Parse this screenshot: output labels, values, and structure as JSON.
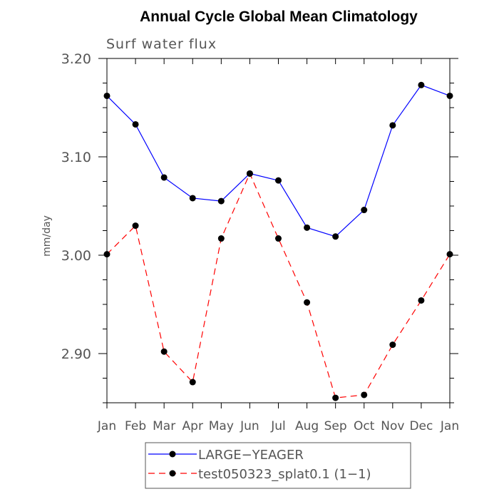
{
  "chart_data": {
    "type": "line",
    "title": "Annual Cycle Global Mean Climatology",
    "subtitle": "Surf water flux",
    "xlabel": "",
    "ylabel": "mm/day",
    "categories": [
      "Jan",
      "Feb",
      "Mar",
      "Apr",
      "May",
      "Jun",
      "Jul",
      "Aug",
      "Sep",
      "Oct",
      "Nov",
      "Dec",
      "Jan"
    ],
    "ylim": [
      2.85,
      3.2
    ],
    "yticks": [
      2.9,
      3.0,
      3.1,
      3.2
    ],
    "ytick_labels": [
      "2.90",
      "3.00",
      "3.10",
      "3.20"
    ],
    "yminor_step": 0.025,
    "legend_position": "bottom",
    "series": [
      {
        "name": "LARGE−YEAGER",
        "color": "#0000ff",
        "dash": "solid",
        "marker": "filled-circle",
        "values": [
          3.162,
          3.133,
          3.079,
          3.058,
          3.055,
          3.083,
          3.076,
          3.028,
          3.019,
          3.046,
          3.132,
          3.173,
          3.162
        ]
      },
      {
        "name": "test050323_splat0.1 (1−1)",
        "color": "#ff0000",
        "dash": "dashed",
        "marker": "filled-circle",
        "values": [
          3.001,
          3.03,
          2.902,
          2.871,
          3.017,
          3.083,
          3.017,
          2.952,
          2.855,
          2.858,
          2.909,
          2.954,
          3.001
        ]
      }
    ]
  }
}
